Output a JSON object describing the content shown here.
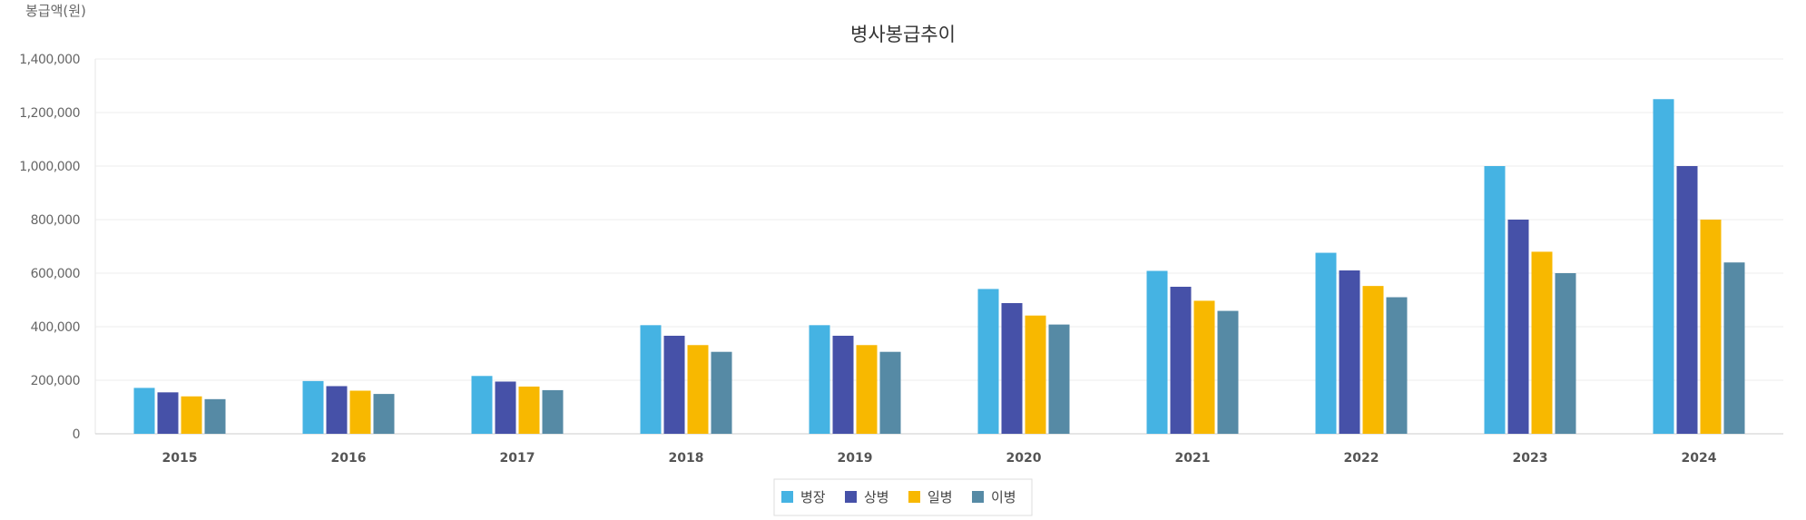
{
  "chart_data": {
    "type": "bar",
    "title": "병사봉급추이",
    "ylabel": "봉급액(원)",
    "xlabel": "",
    "ylim": [
      0,
      1400000
    ],
    "yticks": [
      {
        "value": 0,
        "label": "0"
      },
      {
        "value": 200000,
        "label": "200,000"
      },
      {
        "value": 400000,
        "label": "400,000"
      },
      {
        "value": 600000,
        "label": "600,000"
      },
      {
        "value": 800000,
        "label": "800,000"
      },
      {
        "value": 1000000,
        "label": "1,000,000"
      },
      {
        "value": 1200000,
        "label": "1,200,000"
      },
      {
        "value": 1400000,
        "label": "1,400,000"
      }
    ],
    "categories": [
      "2015",
      "2016",
      "2017",
      "2018",
      "2019",
      "2020",
      "2021",
      "2022",
      "2023",
      "2024"
    ],
    "series": [
      {
        "name": "병장",
        "color": "#45b3e3",
        "values": [
          171400,
          197000,
          216000,
          405700,
          405700,
          540900,
          608500,
          676100,
          1000000,
          1250000
        ]
      },
      {
        "name": "상병",
        "color": "#4651a8",
        "values": [
          154800,
          178000,
          195000,
          366200,
          366200,
          488200,
          549200,
          610200,
          800000,
          1000000
        ]
      },
      {
        "name": "일병",
        "color": "#f8b800",
        "values": [
          139800,
          161000,
          176400,
          331300,
          331300,
          441700,
          496900,
          552100,
          680000,
          800000
        ]
      },
      {
        "name": "이병",
        "color": "#568aa5",
        "values": [
          129400,
          148800,
          163000,
          306100,
          306100,
          408100,
          459100,
          510100,
          600000,
          640000
        ]
      }
    ],
    "grid": true,
    "legend_position": "bottom-center"
  }
}
